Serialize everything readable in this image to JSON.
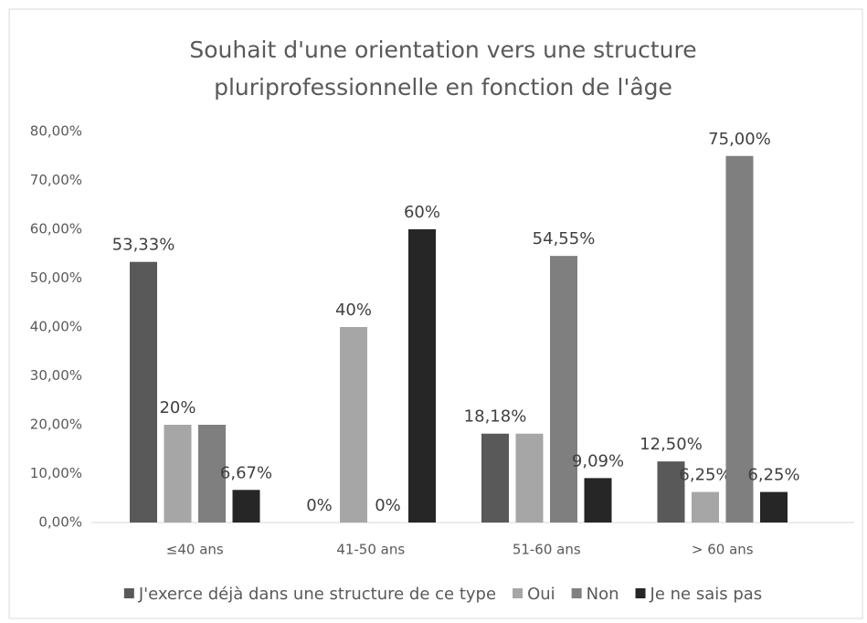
{
  "chart_data": {
    "type": "bar",
    "title": [
      "Souhait d'une orientation vers une structure",
      "pluriprofessionnelle en fonction de l'âge"
    ],
    "categories": [
      "≤40 ans",
      "41-50 ans",
      "51-60 ans",
      "> 60 ans"
    ],
    "series": [
      {
        "name": "J'exerce déjà dans une structure de ce type",
        "color": "#595959",
        "values": [
          53.33,
          0,
          18.18,
          12.5
        ],
        "value_labels": [
          "53,33%",
          "0%",
          "18,18%",
          "12,50%"
        ]
      },
      {
        "name": "Oui",
        "color": "#a6a6a6",
        "values": [
          20,
          40,
          18.18,
          6.25
        ],
        "value_labels": [
          "20%",
          "40%",
          null,
          "6,25%"
        ]
      },
      {
        "name": "Non",
        "color": "#7f7f7f",
        "values": [
          20,
          0,
          54.55,
          75
        ],
        "value_labels": [
          null,
          "0%",
          "54,55%",
          "75,00%"
        ]
      },
      {
        "name": "Je ne sais pas",
        "color": "#262626",
        "values": [
          6.67,
          60,
          9.09,
          6.25
        ],
        "value_labels": [
          "6,67%",
          "60%",
          "9,09%",
          "6,25%"
        ]
      }
    ],
    "ylim": [
      0,
      80
    ],
    "yticks": [
      {
        "value": 0,
        "label": "0,00%"
      },
      {
        "value": 10,
        "label": "10,00%"
      },
      {
        "value": 20,
        "label": "20,00%"
      },
      {
        "value": 30,
        "label": "30,00%"
      },
      {
        "value": 40,
        "label": "40,00%"
      },
      {
        "value": 50,
        "label": "50,00%"
      },
      {
        "value": 60,
        "label": "60,00%"
      },
      {
        "value": 70,
        "label": "70,00%"
      },
      {
        "value": 80,
        "label": "80,00%"
      }
    ],
    "grid": false
  }
}
